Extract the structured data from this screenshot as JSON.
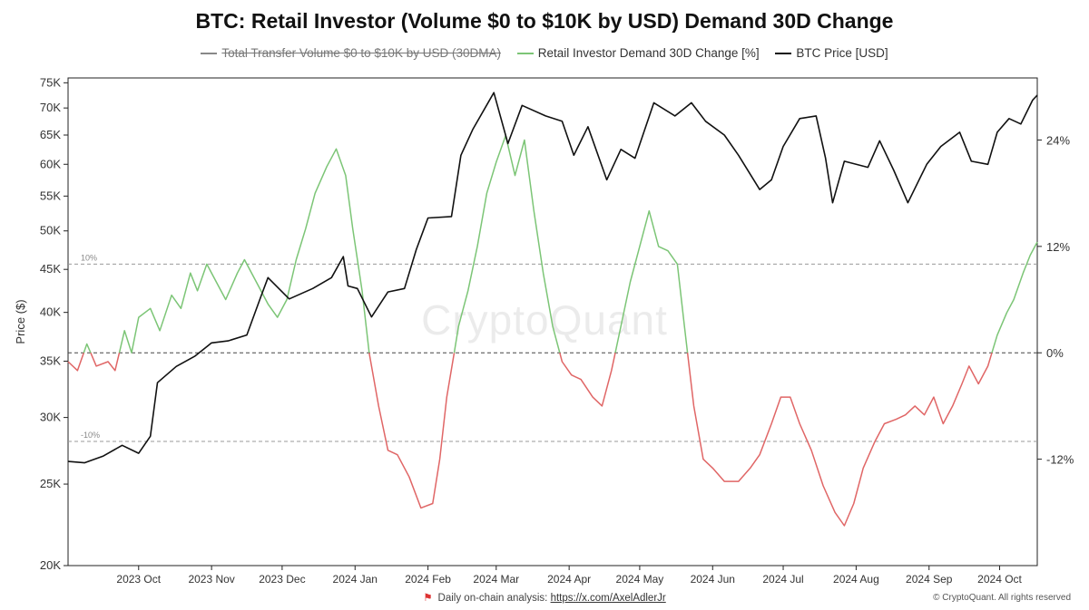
{
  "title": "BTC: Retail Investor (Volume $0 to $10K by USD) Demand 30D Change",
  "legend": [
    {
      "label": "Total Transfer Volume $0 to $10K by USD (30DMA)",
      "color": "#888888",
      "disabled": true
    },
    {
      "label": "Retail Investor Demand 30D Change [%]",
      "color": "#7cc576",
      "disabled": false
    },
    {
      "label": "BTC Price [USD]",
      "color": "#111111",
      "disabled": false
    }
  ],
  "watermark": "CryptoQuant",
  "footer": {
    "text": "Daily on-chain analysis:",
    "link": "https://x.com/AxelAdlerJr",
    "copyright": "© CryptoQuant. All rights reserved"
  },
  "colors": {
    "positive": "#7cc576",
    "negative": "#e06666",
    "price": "#111111",
    "refline": "#999999"
  },
  "chart_data": {
    "type": "line",
    "title": "BTC: Retail Investor (Volume $0 to $10K by USD) Demand 30D Change",
    "ylabel_left": "Price ($)",
    "y_left_scale": "log",
    "y_left_range": [
      20000,
      76000
    ],
    "y_left_ticks": [
      {
        "value": 20000,
        "label": "20K"
      },
      {
        "value": 25000,
        "label": "25K"
      },
      {
        "value": 30000,
        "label": "30K"
      },
      {
        "value": 35000,
        "label": "35K"
      },
      {
        "value": 40000,
        "label": "40K"
      },
      {
        "value": 45000,
        "label": "45K"
      },
      {
        "value": 50000,
        "label": "50K"
      },
      {
        "value": 55000,
        "label": "55K"
      },
      {
        "value": 60000,
        "label": "60K"
      },
      {
        "value": 65000,
        "label": "65K"
      },
      {
        "value": 70000,
        "label": "70K"
      },
      {
        "value": 75000,
        "label": "75K"
      }
    ],
    "y_right_range": [
      -24,
      31
    ],
    "y_right_ticks": [
      {
        "value": 24,
        "label": "24%"
      },
      {
        "value": 12,
        "label": "12%"
      },
      {
        "value": 0,
        "label": "0%"
      },
      {
        "value": -12,
        "label": "-12%"
      }
    ],
    "reference_lines": [
      {
        "value": 10,
        "label": "10%",
        "style": "dashed"
      },
      {
        "value": 0,
        "label": "",
        "style": "dashed"
      },
      {
        "value": -10,
        "label": "-10%",
        "style": "dashed"
      }
    ],
    "x_range": [
      "2023-09-15",
      "2024-10-31"
    ],
    "x_ticks": [
      {
        "date": "2023-10-15",
        "label": "2023 Oct"
      },
      {
        "date": "2023-11-15",
        "label": "2023 Nov"
      },
      {
        "date": "2023-12-15",
        "label": "2023 Dec"
      },
      {
        "date": "2024-01-15",
        "label": "2024 Jan"
      },
      {
        "date": "2024-02-15",
        "label": "2024 Feb"
      },
      {
        "date": "2024-03-15",
        "label": "2024 Mar"
      },
      {
        "date": "2024-04-15",
        "label": "2024 Apr"
      },
      {
        "date": "2024-05-15",
        "label": "2024 May"
      },
      {
        "date": "2024-06-15",
        "label": "2024 Jun"
      },
      {
        "date": "2024-07-15",
        "label": "2024 Jul"
      },
      {
        "date": "2024-08-15",
        "label": "2024 Aug"
      },
      {
        "date": "2024-09-15",
        "label": "2024 Sep"
      },
      {
        "date": "2024-10-15",
        "label": "2024 Oct"
      }
    ],
    "series": [
      {
        "name": "BTC Price [USD]",
        "axis": "left",
        "points": [
          [
            "2023-09-15",
            26600
          ],
          [
            "2023-09-22",
            26500
          ],
          [
            "2023-09-30",
            27000
          ],
          [
            "2023-10-08",
            27800
          ],
          [
            "2023-10-15",
            27200
          ],
          [
            "2023-10-20",
            28500
          ],
          [
            "2023-10-23",
            33000
          ],
          [
            "2023-10-31",
            34500
          ],
          [
            "2023-11-08",
            35500
          ],
          [
            "2023-11-15",
            36800
          ],
          [
            "2023-11-22",
            37000
          ],
          [
            "2023-11-30",
            37600
          ],
          [
            "2023-12-06",
            41800
          ],
          [
            "2023-12-09",
            44000
          ],
          [
            "2023-12-18",
            41500
          ],
          [
            "2023-12-28",
            42700
          ],
          [
            "2024-01-05",
            44000
          ],
          [
            "2024-01-10",
            46600
          ],
          [
            "2024-01-12",
            43000
          ],
          [
            "2024-01-16",
            42700
          ],
          [
            "2024-01-22",
            39500
          ],
          [
            "2024-01-29",
            42300
          ],
          [
            "2024-02-05",
            42700
          ],
          [
            "2024-02-10",
            47500
          ],
          [
            "2024-02-15",
            51800
          ],
          [
            "2024-02-25",
            52000
          ],
          [
            "2024-02-29",
            61500
          ],
          [
            "2024-03-05",
            66000
          ],
          [
            "2024-03-14",
            73000
          ],
          [
            "2024-03-20",
            63500
          ],
          [
            "2024-03-26",
            70500
          ],
          [
            "2024-04-05",
            68500
          ],
          [
            "2024-04-12",
            67500
          ],
          [
            "2024-04-17",
            61500
          ],
          [
            "2024-04-23",
            66500
          ],
          [
            "2024-05-01",
            57500
          ],
          [
            "2024-05-07",
            62500
          ],
          [
            "2024-05-13",
            61000
          ],
          [
            "2024-05-21",
            71000
          ],
          [
            "2024-05-30",
            68500
          ],
          [
            "2024-06-06",
            71000
          ],
          [
            "2024-06-12",
            67500
          ],
          [
            "2024-06-20",
            65000
          ],
          [
            "2024-06-26",
            61500
          ],
          [
            "2024-07-05",
            56000
          ],
          [
            "2024-07-10",
            57500
          ],
          [
            "2024-07-15",
            63000
          ],
          [
            "2024-07-22",
            68000
          ],
          [
            "2024-07-29",
            68500
          ],
          [
            "2024-08-02",
            61000
          ],
          [
            "2024-08-05",
            54000
          ],
          [
            "2024-08-10",
            60500
          ],
          [
            "2024-08-20",
            59500
          ],
          [
            "2024-08-25",
            64000
          ],
          [
            "2024-08-31",
            59000
          ],
          [
            "2024-09-06",
            54000
          ],
          [
            "2024-09-14",
            60000
          ],
          [
            "2024-09-20",
            63000
          ],
          [
            "2024-09-28",
            65500
          ],
          [
            "2024-10-03",
            60500
          ],
          [
            "2024-10-10",
            60000
          ],
          [
            "2024-10-14",
            65500
          ],
          [
            "2024-10-19",
            68000
          ],
          [
            "2024-10-24",
            67000
          ],
          [
            "2024-10-29",
            71500
          ],
          [
            "2024-10-31",
            72500
          ]
        ]
      },
      {
        "name": "Retail Investor Demand 30D Change [%]",
        "axis": "right",
        "points": [
          [
            "2023-09-15",
            -1
          ],
          [
            "2023-09-19",
            -2
          ],
          [
            "2023-09-23",
            1
          ],
          [
            "2023-09-27",
            -1.5
          ],
          [
            "2023-10-02",
            -1
          ],
          [
            "2023-10-05",
            -2
          ],
          [
            "2023-10-09",
            2.5
          ],
          [
            "2023-10-12",
            0
          ],
          [
            "2023-10-15",
            4
          ],
          [
            "2023-10-20",
            5
          ],
          [
            "2023-10-24",
            2.5
          ],
          [
            "2023-10-29",
            6.5
          ],
          [
            "2023-11-02",
            5
          ],
          [
            "2023-11-06",
            9
          ],
          [
            "2023-11-09",
            7
          ],
          [
            "2023-11-13",
            10
          ],
          [
            "2023-11-17",
            8
          ],
          [
            "2023-11-21",
            6
          ],
          [
            "2023-11-26",
            9
          ],
          [
            "2023-11-29",
            10.5
          ],
          [
            "2023-12-04",
            8
          ],
          [
            "2023-12-09",
            5.5
          ],
          [
            "2023-12-13",
            4
          ],
          [
            "2023-12-17",
            6
          ],
          [
            "2023-12-21",
            10.5
          ],
          [
            "2023-12-25",
            14
          ],
          [
            "2023-12-29",
            18
          ],
          [
            "2024-01-03",
            21
          ],
          [
            "2024-01-07",
            23
          ],
          [
            "2024-01-11",
            20
          ],
          [
            "2024-01-14",
            14
          ],
          [
            "2024-01-18",
            7
          ],
          [
            "2024-01-21",
            0
          ],
          [
            "2024-01-25",
            -6
          ],
          [
            "2024-01-29",
            -11
          ],
          [
            "2024-02-02",
            -11.5
          ],
          [
            "2024-02-07",
            -14
          ],
          [
            "2024-02-12",
            -17.5
          ],
          [
            "2024-02-17",
            -17
          ],
          [
            "2024-02-20",
            -12
          ],
          [
            "2024-02-23",
            -5
          ],
          [
            "2024-02-28",
            3
          ],
          [
            "2024-03-03",
            7
          ],
          [
            "2024-03-07",
            12
          ],
          [
            "2024-03-11",
            18
          ],
          [
            "2024-03-15",
            21.5
          ],
          [
            "2024-03-19",
            24.5
          ],
          [
            "2024-03-23",
            20
          ],
          [
            "2024-03-27",
            24
          ],
          [
            "2024-03-31",
            16
          ],
          [
            "2024-04-04",
            9
          ],
          [
            "2024-04-08",
            3
          ],
          [
            "2024-04-12",
            -1
          ],
          [
            "2024-04-16",
            -2.5
          ],
          [
            "2024-04-20",
            -3
          ],
          [
            "2024-04-25",
            -5
          ],
          [
            "2024-04-29",
            -6
          ],
          [
            "2024-05-03",
            -2
          ],
          [
            "2024-05-07",
            3
          ],
          [
            "2024-05-11",
            8
          ],
          [
            "2024-05-15",
            12
          ],
          [
            "2024-05-19",
            16
          ],
          [
            "2024-05-23",
            12
          ],
          [
            "2024-05-27",
            11.5
          ],
          [
            "2024-05-31",
            10
          ],
          [
            "2024-06-03",
            3
          ],
          [
            "2024-06-07",
            -6
          ],
          [
            "2024-06-11",
            -12
          ],
          [
            "2024-06-15",
            -13
          ],
          [
            "2024-06-20",
            -14.5
          ],
          [
            "2024-06-26",
            -14.5
          ],
          [
            "2024-07-01",
            -13
          ],
          [
            "2024-07-05",
            -11.5
          ],
          [
            "2024-07-10",
            -8
          ],
          [
            "2024-07-14",
            -5
          ],
          [
            "2024-07-18",
            -5
          ],
          [
            "2024-07-22",
            -8
          ],
          [
            "2024-07-27",
            -11
          ],
          [
            "2024-08-01",
            -15
          ],
          [
            "2024-08-06",
            -18
          ],
          [
            "2024-08-10",
            -19.5
          ],
          [
            "2024-08-14",
            -17
          ],
          [
            "2024-08-18",
            -13
          ],
          [
            "2024-08-23",
            -10
          ],
          [
            "2024-08-27",
            -8
          ],
          [
            "2024-09-01",
            -7.5
          ],
          [
            "2024-09-05",
            -7
          ],
          [
            "2024-09-09",
            -6
          ],
          [
            "2024-09-13",
            -7
          ],
          [
            "2024-09-17",
            -5
          ],
          [
            "2024-09-21",
            -8
          ],
          [
            "2024-09-25",
            -6
          ],
          [
            "2024-09-29",
            -3.5
          ],
          [
            "2024-10-02",
            -1.5
          ],
          [
            "2024-10-06",
            -3.5
          ],
          [
            "2024-10-10",
            -1.5
          ],
          [
            "2024-10-14",
            2
          ],
          [
            "2024-10-18",
            4.5
          ],
          [
            "2024-10-21",
            6
          ],
          [
            "2024-10-25",
            9
          ],
          [
            "2024-10-28",
            11
          ],
          [
            "2024-10-31",
            12.5
          ]
        ]
      }
    ],
    "grid": false,
    "legend_position": "top-center"
  }
}
